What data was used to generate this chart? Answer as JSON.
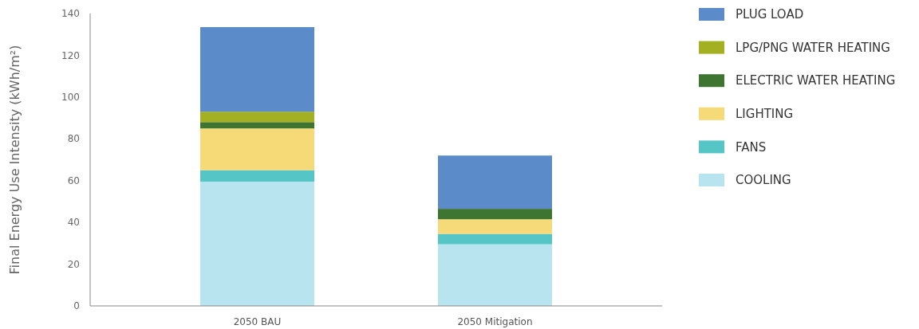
{
  "chart_data": {
    "type": "bar",
    "stacked": true,
    "ylabel": "Final Energy Use Intensity (kWh/m²)",
    "categories": [
      "2050 BAU",
      "2050 Mitigation"
    ],
    "series": [
      {
        "name": "COOLING",
        "color": "#b8e4f0",
        "values": [
          59.5,
          29.5
        ]
      },
      {
        "name": "FANS",
        "color": "#55c6c5",
        "values": [
          5.5,
          5
        ]
      },
      {
        "name": "LIGHTING",
        "color": "#f7da78",
        "values": [
          20,
          7
        ]
      },
      {
        "name": "ELECTRIC WATER HEATING",
        "color": "#3e7530",
        "values": [
          3,
          5
        ]
      },
      {
        "name": "LPG/PNG WATER HEATING",
        "color": "#a3b021",
        "values": [
          5,
          0
        ]
      },
      {
        "name": "PLUG LOAD",
        "color": "#5b8bc9",
        "values": [
          40.5,
          25.5
        ]
      }
    ],
    "ylim": [
      0,
      140
    ],
    "yticks": [
      0,
      20,
      40,
      60,
      80,
      100,
      120,
      140
    ],
    "legend": "right"
  }
}
